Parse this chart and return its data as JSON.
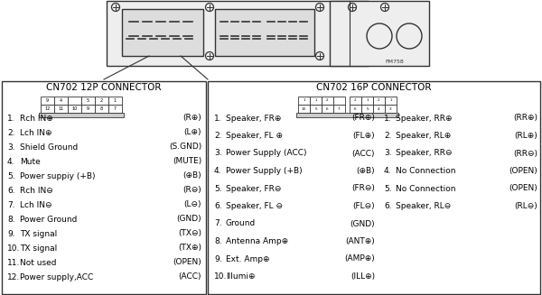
{
  "bg_color": "#ffffff",
  "cn702_12p_title": "CN702 12P CONNECTOR",
  "cn702_16p_title": "CN702 16P CONNECTOR",
  "cn702_12p_items": [
    [
      "1.",
      "Rch IN⊕",
      "(R⊕)"
    ],
    [
      "2.",
      "Lch IN⊕",
      "(L⊕)"
    ],
    [
      "3.",
      "Shield Ground",
      "(S.GND)"
    ],
    [
      "4.",
      "Mute",
      "(MUTE)"
    ],
    [
      "5.",
      "Power suppiy (+B)",
      "(⊕B)"
    ],
    [
      "6.",
      "Rch IN⊖",
      "(R⊖)"
    ],
    [
      "7.",
      "Lch IN⊖",
      "(L⊖)"
    ],
    [
      "8.",
      "Power Ground",
      "(GND)"
    ],
    [
      "9.",
      "TX signal",
      "(TX⊖)"
    ],
    [
      "10.",
      "TX signal",
      "(TX⊕)"
    ],
    [
      "11.",
      "Not used",
      "(OPEN)"
    ],
    [
      "12.",
      "Power supply,ACC",
      "(ACC)"
    ]
  ],
  "cn702_16p_left_items": [
    [
      "1.",
      "Speaker, FR⊕",
      "(FR⊕)"
    ],
    [
      "2.",
      "Speaker, FL ⊕",
      "(FL⊕)"
    ],
    [
      "3.",
      "Power Supply (ACC)",
      "(ACC)"
    ],
    [
      "4.",
      "Power Supply (+B)",
      "(⊕B)"
    ],
    [
      "5.",
      "Speaker, FR⊖",
      "(FR⊖)"
    ],
    [
      "6.",
      "Speaker, FL ⊖",
      "(FL⊖)"
    ],
    [
      "7.",
      "Ground",
      "(GND)"
    ],
    [
      "8.",
      "Antenna Amp⊕",
      "(ANT⊕)"
    ],
    [
      "9.",
      "Ext. Amp⊕",
      "(AMP⊕)"
    ],
    [
      "10.",
      "Illumi⊕",
      "(ILL⊕)"
    ]
  ],
  "cn702_16p_right_items": [
    [
      "1.",
      "Speaker, RR⊕",
      "(RR⊕)"
    ],
    [
      "2.",
      "Speaker, RL⊕",
      "(RL⊕)"
    ],
    [
      "3.",
      "Speaker, RR⊖",
      "(RR⊖)"
    ],
    [
      "4.",
      "No Connection",
      "(OPEN)"
    ],
    [
      "5.",
      "No Connection",
      "(OPEN)"
    ],
    [
      "6.",
      "Speaker, RL⊖",
      "(RL⊖)"
    ]
  ]
}
